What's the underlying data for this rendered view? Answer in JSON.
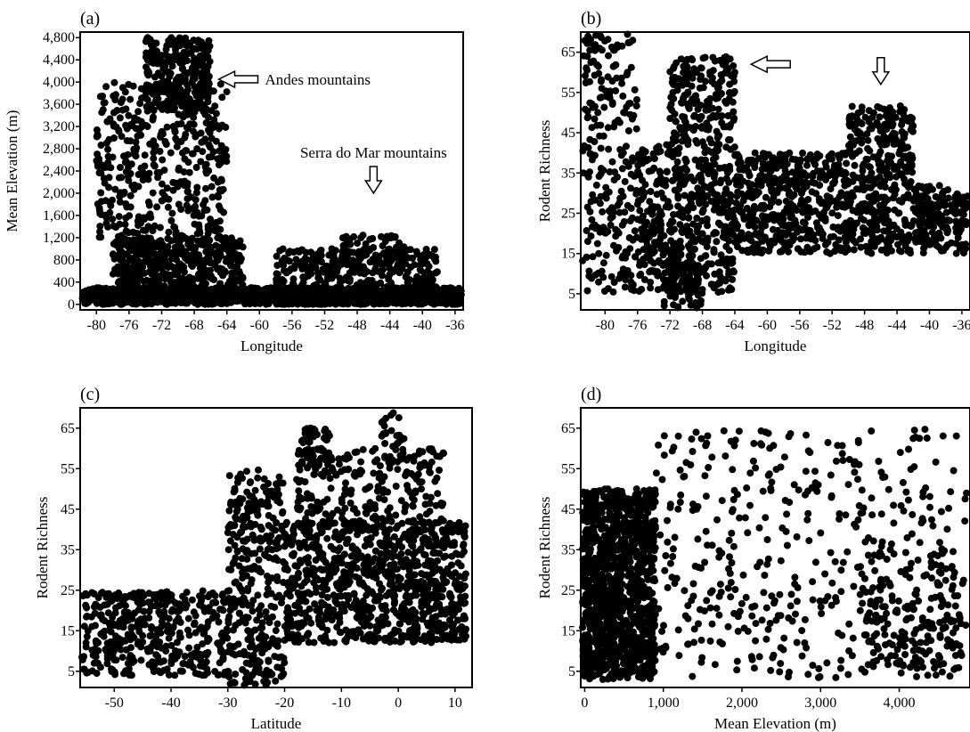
{
  "chart_data": [
    {
      "panel": "(a)",
      "type": "scatter",
      "xlabel": "Longitude",
      "ylabel": "Mean Elevation (m)",
      "xticks": [
        "-80",
        "-76",
        "-72",
        "-68",
        "-64",
        "-60",
        "-56",
        "-52",
        "-48",
        "-44",
        "-40",
        "-36"
      ],
      "yticks": [
        "0",
        "400",
        "800",
        "1,200",
        "1,600",
        "2,000",
        "2,400",
        "2,800",
        "3,200",
        "3,600",
        "4,000",
        "4,400",
        "4,800"
      ],
      "xlim": [
        -82,
        -35
      ],
      "ylim": [
        -100,
        4900
      ],
      "annotations": [
        {
          "text": "Andes mountains",
          "x": -65,
          "y": 4050,
          "arrow": "left"
        },
        {
          "text": "Serra do Mar mountains",
          "x": -46,
          "y": 2000,
          "arrow": "down"
        }
      ],
      "clusters": [
        {
          "x": [
            -82,
            -35
          ],
          "y": [
            0,
            300
          ],
          "n": 1500
        },
        {
          "x": [
            -78,
            -62
          ],
          "y": [
            300,
            1200
          ],
          "n": 450
        },
        {
          "x": [
            -80,
            -64
          ],
          "y": [
            1200,
            4000
          ],
          "n": 420
        },
        {
          "x": [
            -74,
            -66
          ],
          "y": [
            3500,
            4800
          ],
          "n": 260
        },
        {
          "x": [
            -58,
            -38
          ],
          "y": [
            200,
            1000
          ],
          "n": 300
        },
        {
          "x": [
            -50,
            -42
          ],
          "y": [
            700,
            1250
          ],
          "n": 70
        }
      ]
    },
    {
      "panel": "(b)",
      "type": "scatter",
      "xlabel": "Longitude",
      "ylabel": "Rodent Richness",
      "xticks": [
        "-80",
        "-76",
        "-72",
        "-68",
        "-64",
        "-60",
        "-56",
        "-52",
        "-48",
        "-44",
        "-40",
        "-36"
      ],
      "yticks": [
        "5",
        "15",
        "25",
        "35",
        "45",
        "55",
        "65"
      ],
      "xlim": [
        -83,
        -35
      ],
      "ylim": [
        1,
        70
      ],
      "annotations": [
        {
          "text": "",
          "x": -62,
          "y": 62,
          "arrow": "left"
        },
        {
          "text": "",
          "x": -46,
          "y": 57,
          "arrow": "down"
        }
      ],
      "clusters": [
        {
          "x": [
            -83,
            -76
          ],
          "y": [
            5,
            70
          ],
          "n": 260
        },
        {
          "x": [
            -76,
            -64
          ],
          "y": [
            5,
            42
          ],
          "n": 500
        },
        {
          "x": [
            -72,
            -64
          ],
          "y": [
            42,
            64
          ],
          "n": 200
        },
        {
          "x": [
            -64,
            -50
          ],
          "y": [
            15,
            40
          ],
          "n": 500
        },
        {
          "x": [
            -50,
            -42
          ],
          "y": [
            15,
            52
          ],
          "n": 360
        },
        {
          "x": [
            -42,
            -35
          ],
          "y": [
            15,
            32
          ],
          "n": 200
        },
        {
          "x": [
            -73,
            -68
          ],
          "y": [
            1,
            15
          ],
          "n": 60
        }
      ]
    },
    {
      "panel": "(c)",
      "type": "scatter",
      "xlabel": "Latitude",
      "ylabel": "Rodent Richness",
      "xticks": [
        "-50",
        "-40",
        "-30",
        "-20",
        "-10",
        "0",
        "10"
      ],
      "yticks": [
        "5",
        "15",
        "25",
        "35",
        "45",
        "55",
        "65"
      ],
      "xlim": [
        -56,
        13
      ],
      "ylim": [
        1,
        70
      ],
      "annotations": [],
      "clusters": [
        {
          "x": [
            -56,
            -30
          ],
          "y": [
            4,
            25
          ],
          "n": 420
        },
        {
          "x": [
            -30,
            -20
          ],
          "y": [
            1,
            55
          ],
          "n": 320
        },
        {
          "x": [
            -20,
            12
          ],
          "y": [
            12,
            42
          ],
          "n": 900
        },
        {
          "x": [
            -18,
            8
          ],
          "y": [
            40,
            60
          ],
          "n": 260
        },
        {
          "x": [
            -17,
            -12
          ],
          "y": [
            55,
            65
          ],
          "n": 40
        },
        {
          "x": [
            -3,
            1
          ],
          "y": [
            55,
            69
          ],
          "n": 30
        }
      ]
    },
    {
      "panel": "(d)",
      "type": "scatter",
      "xlabel": "Mean Elevation (m)",
      "ylabel": "Rodent Richness",
      "xticks": [
        "0",
        "1,000",
        "2,000",
        "3,000",
        "4,000"
      ],
      "yticks": [
        "5",
        "15",
        "25",
        "35",
        "45",
        "55",
        "65"
      ],
      "xlim": [
        -50,
        4900
      ],
      "ylim": [
        1,
        70
      ],
      "annotations": [],
      "clusters": [
        {
          "x": [
            -50,
            900
          ],
          "y": [
            3,
            50
          ],
          "n": 1200
        },
        {
          "x": [
            900,
            4900
          ],
          "y": [
            3,
            65
          ],
          "n": 450
        },
        {
          "x": [
            3500,
            4800
          ],
          "y": [
            5,
            35
          ],
          "n": 160
        }
      ]
    }
  ]
}
